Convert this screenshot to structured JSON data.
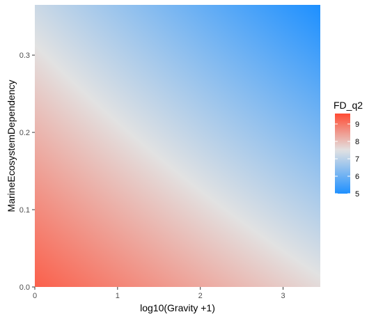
{
  "chart_data": {
    "type": "heatmap",
    "title": "",
    "xlabel": "log10(Gravity +1)",
    "ylabel": "MarineEcosystemDependency",
    "xlim": [
      0,
      3.45
    ],
    "ylim": [
      0,
      0.365
    ],
    "x_ticks": [
      0,
      1,
      2,
      3
    ],
    "y_ticks": [
      0.0,
      0.1,
      0.2,
      0.3
    ],
    "x_tick_labels": [
      "0",
      "1",
      "2",
      "3"
    ],
    "y_tick_labels": [
      "0.0",
      "0.1",
      "0.2",
      "0.3"
    ],
    "grid": false,
    "fill": {
      "variable": "FD_q2",
      "corners": [
        {
          "x": 0,
          "y": 0,
          "value": 9.3
        },
        {
          "x": 3.45,
          "y": 0,
          "value": 7.6
        },
        {
          "x": 0,
          "y": 0.365,
          "value": 7.2
        },
        {
          "x": 3.45,
          "y": 0.365,
          "value": 5.0
        }
      ]
    },
    "legend": {
      "title": "FD_q2",
      "placement": "right",
      "range": [
        5,
        9.6
      ],
      "midpoint": 7.5,
      "low_color": "#1e90ff",
      "mid_color": "#e2e2e2",
      "high_color": "#ff4b33",
      "ticks": [
        5,
        6,
        7,
        8,
        9
      ],
      "tick_labels": [
        "5",
        "6",
        "7",
        "8",
        "9"
      ]
    }
  }
}
